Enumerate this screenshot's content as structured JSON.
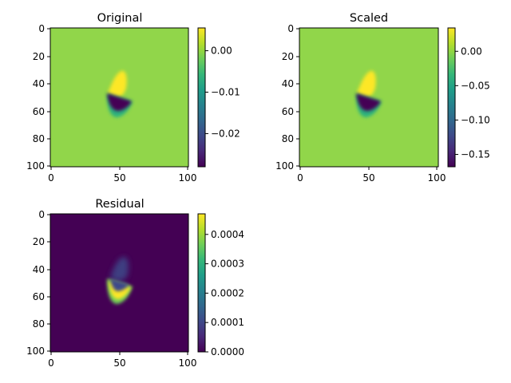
{
  "colors": {
    "viridis": [
      "#440154",
      "#482878",
      "#3e4989",
      "#31688e",
      "#26828e",
      "#1f9e89",
      "#35b779",
      "#6ece58",
      "#b5de2b",
      "#fde725"
    ]
  },
  "chart_data": [
    {
      "type": "heatmap",
      "title": "Original",
      "grid": false,
      "xlim": [
        0,
        100
      ],
      "ylim": [
        100,
        0
      ],
      "xticks": [
        "0",
        "50",
        "100"
      ],
      "yticks": [
        "0",
        "20",
        "40",
        "60",
        "80",
        "100"
      ],
      "colormap": "viridis",
      "colorbar": {
        "min": -0.028,
        "max": 0.0055,
        "ticks": [
          "0.00",
          "−0.01",
          "−0.02"
        ],
        "tick_values": [
          0.0,
          -0.01,
          -0.02
        ]
      }
    },
    {
      "type": "heatmap",
      "title": "Scaled",
      "grid": false,
      "xlim": [
        0,
        100
      ],
      "ylim": [
        100,
        0
      ],
      "xticks": [
        "0",
        "50",
        "100"
      ],
      "yticks": [
        "0",
        "20",
        "40",
        "60",
        "80",
        "100"
      ],
      "colormap": "viridis",
      "colorbar": {
        "min": -0.168,
        "max": 0.034,
        "ticks": [
          "0.00",
          "−0.05",
          "−0.10",
          "−0.15"
        ],
        "tick_values": [
          0.0,
          -0.05,
          -0.1,
          -0.15
        ]
      }
    },
    {
      "type": "heatmap",
      "title": "Residual",
      "grid": false,
      "xlim": [
        0,
        100
      ],
      "ylim": [
        100,
        0
      ],
      "xticks": [
        "0",
        "50",
        "100"
      ],
      "yticks": [
        "0",
        "20",
        "40",
        "60",
        "80",
        "100"
      ],
      "colormap": "viridis",
      "colorbar": {
        "min": 0.0,
        "max": 0.00047,
        "ticks": [
          "0.0000",
          "0.0001",
          "0.0002",
          "0.0003",
          "0.0004"
        ],
        "tick_values": [
          0.0,
          0.0001,
          0.0002,
          0.0003,
          0.0004
        ]
      }
    }
  ]
}
